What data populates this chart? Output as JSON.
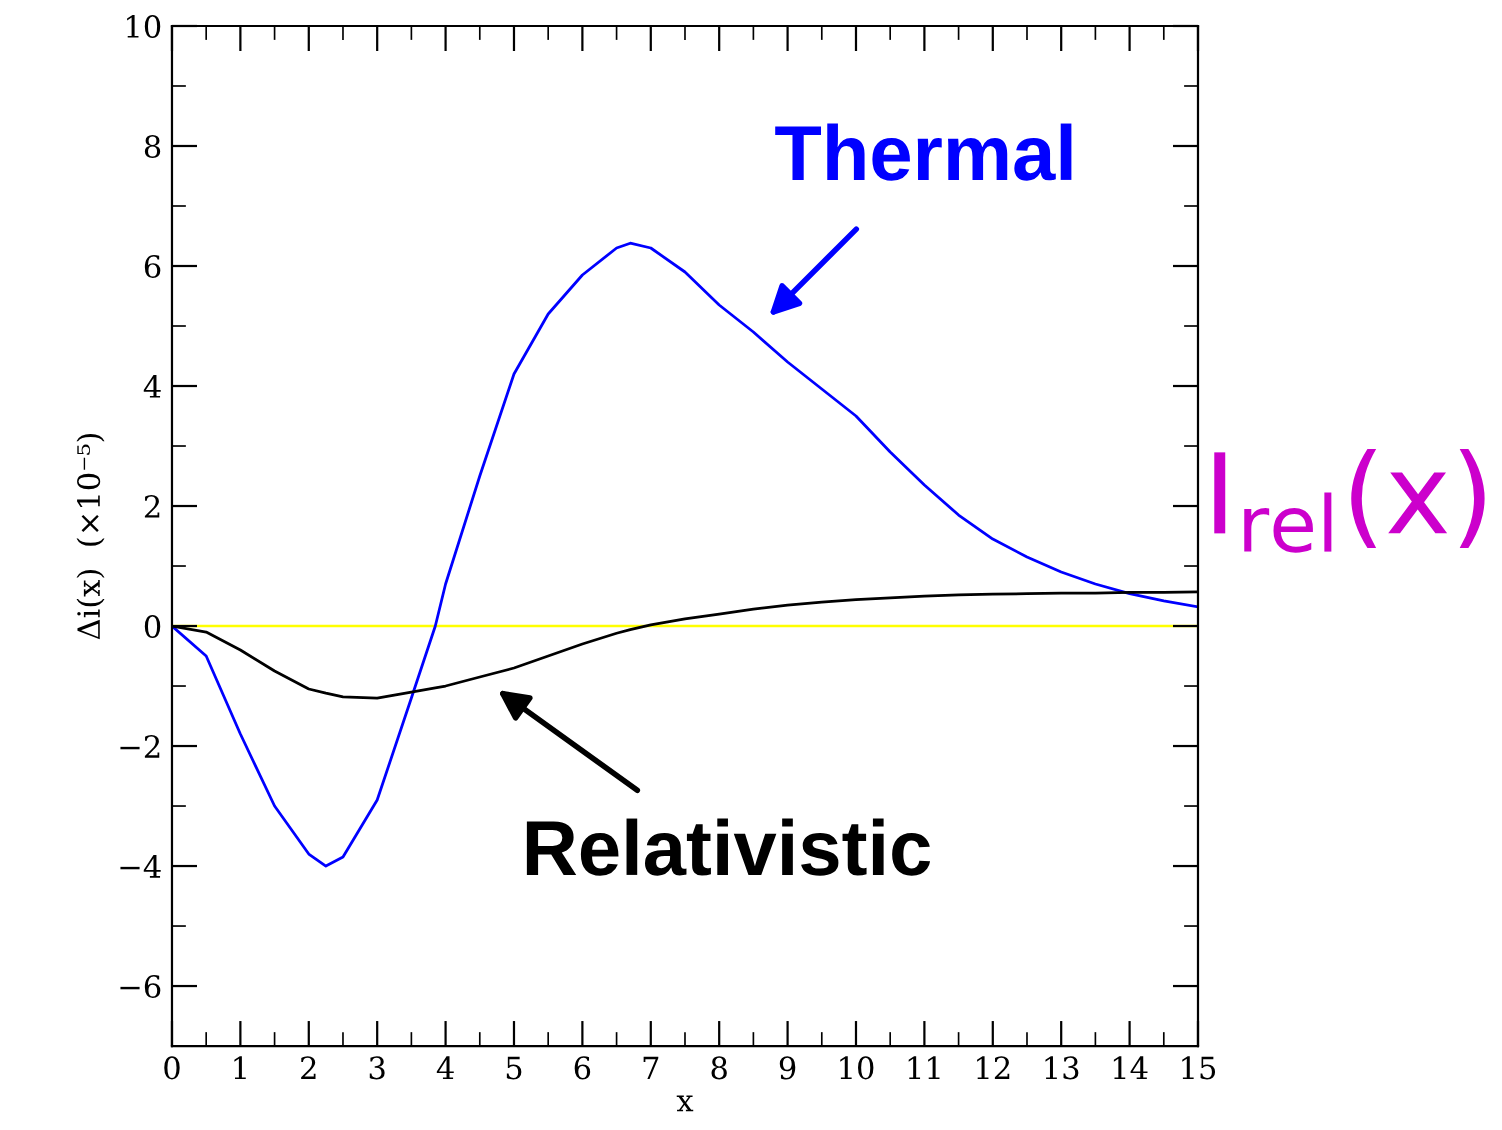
{
  "chart_data": {
    "type": "line",
    "xlabel": "x",
    "ylabel": "Δi(x)  (×10⁻⁵)",
    "x": [
      0,
      0.5,
      1,
      1.5,
      2,
      2.25,
      2.5,
      3,
      3.5,
      3.85,
      4,
      4.5,
      5,
      5.5,
      6,
      6.5,
      6.7,
      7,
      7.5,
      8,
      8.5,
      9,
      9.5,
      10,
      10.5,
      11,
      11.5,
      12,
      12.5,
      13,
      13.5,
      14,
      14.5,
      15
    ],
    "series": [
      {
        "color": "#0000ff",
        "values": [
          0,
          -0.5,
          -1.8,
          -3.0,
          -3.8,
          -4.0,
          -3.85,
          -2.9,
          -1.2,
          0,
          0.7,
          2.5,
          4.2,
          5.2,
          5.85,
          6.3,
          6.38,
          6.3,
          5.9,
          5.35,
          4.9,
          4.4,
          3.95,
          3.5,
          2.9,
          2.35,
          1.85,
          1.45,
          1.15,
          0.9,
          0.7,
          0.54,
          0.42,
          0.32
        ]
      },
      {
        "color": "#000000",
        "values": [
          0,
          -0.1,
          -0.4,
          -0.75,
          -1.05,
          -1.12,
          -1.18,
          -1.2,
          -1.1,
          -1.03,
          -1.0,
          -0.85,
          -0.7,
          -0.5,
          -0.3,
          -0.12,
          -0.06,
          0.02,
          0.12,
          0.2,
          0.28,
          0.35,
          0.4,
          0.44,
          0.47,
          0.5,
          0.52,
          0.53,
          0.54,
          0.55,
          0.55,
          0.56,
          0.56,
          0.57
        ]
      }
    ],
    "ref_lines": [
      {
        "axis": "y",
        "value": 0,
        "color": "#ffff00"
      }
    ],
    "annotations": [
      {
        "text": "Thermal",
        "x": 8.5,
        "y": 4.9
      },
      {
        "text": "Relativistic",
        "x": 4.5,
        "y": -0.85
      },
      "I$_{rel}$(x)"
    ],
    "xlim": [
      0,
      15
    ],
    "ylim": [
      -7,
      10
    ],
    "xticks": [
      0,
      1,
      2,
      3,
      4,
      5,
      6,
      7,
      8,
      9,
      10,
      11,
      12,
      13,
      14,
      15
    ],
    "yticks": [
      -6,
      -4,
      -2,
      0,
      2,
      4,
      6,
      8,
      10
    ],
    "grid": false,
    "legend": false
  }
}
